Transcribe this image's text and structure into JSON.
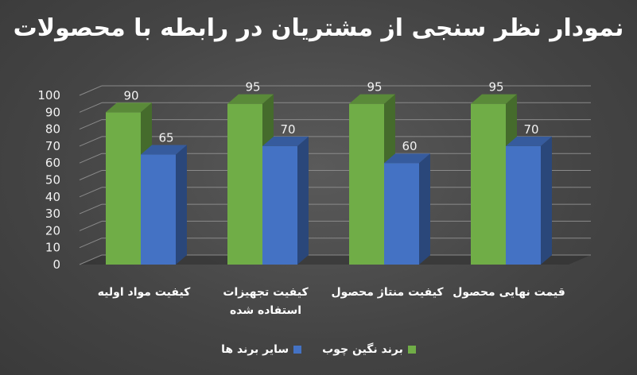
{
  "chart_data": {
    "type": "bar",
    "title": "نمودار نظر سنجی از مشتریان در رابطه با محصولات",
    "categories": [
      "کیفیت مواد اولیه",
      "کیفیت تجهیزات استفاده شده",
      "کیفیت منتاژ محصول",
      "قیمت نهایی محصول"
    ],
    "series": [
      {
        "name": "برند نگین چوب",
        "values": [
          90,
          95,
          95,
          95
        ],
        "color": "#70ad47"
      },
      {
        "name": "سایر برند ها",
        "values": [
          65,
          70,
          60,
          70
        ],
        "color": "#4472c4"
      }
    ],
    "ylim": [
      0,
      100
    ],
    "yticks": [
      0,
      10,
      20,
      30,
      40,
      50,
      60,
      70,
      80,
      90,
      100
    ],
    "grid": true,
    "three_d": true,
    "legend_position": "bottom",
    "background": "#4a4a4a"
  }
}
